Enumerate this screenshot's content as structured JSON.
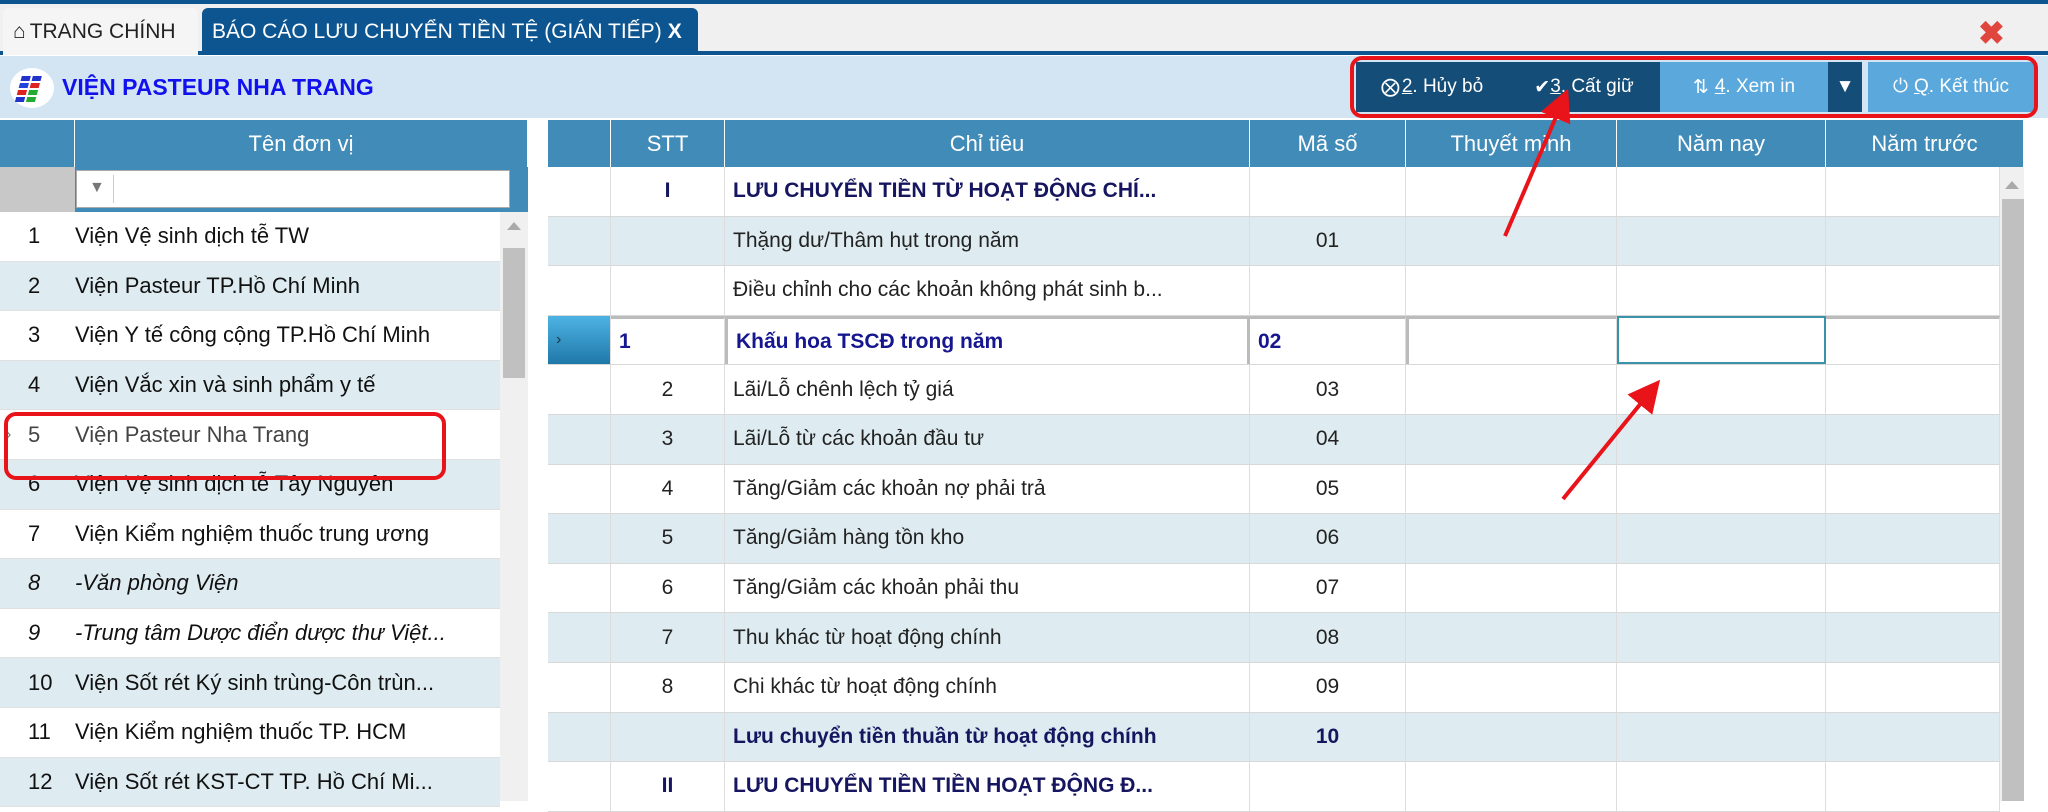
{
  "tabs": [
    {
      "label": "TRANG CHÍNH",
      "icon": "home-icon"
    },
    {
      "label": "BÁO CÁO LƯU CHUYỂN TIỀN TỆ (GIÁN TIẾP)",
      "close": "X"
    }
  ],
  "org_title": "VIỆN PASTEUR NHA TRANG",
  "toolbar": {
    "cancel": {
      "key": "2",
      "label": ". Hủy bỏ"
    },
    "save": {
      "key": "3",
      "label": ". Cất giữ"
    },
    "preview": {
      "key": "4",
      "label": ". Xem in"
    },
    "exit": {
      "key": "Q",
      "label": ". Kết thúc"
    }
  },
  "colors": {
    "header": "#418bb8",
    "dark_button": "#144d78",
    "light_button": "#5aa8dc",
    "annotation": "#e8141a",
    "alt_row": "#deecf1"
  },
  "left": {
    "header": "Tên đơn vị",
    "filter_value": "",
    "rows": [
      {
        "n": "1",
        "name": "Viện Vệ sinh dịch tễ TW"
      },
      {
        "n": "2",
        "name": "Viện Pasteur TP.Hồ Chí Minh"
      },
      {
        "n": "3",
        "name": "Viện Y tế công cộng TP.Hồ Chí Minh"
      },
      {
        "n": "4",
        "name": "Viện Vắc xin và sinh phẩm y tế"
      },
      {
        "n": "5",
        "name": "Viện Pasteur Nha Trang",
        "selected": true
      },
      {
        "n": "6",
        "name": "Viện Vệ sinh dịch tễ Tây Nguyên"
      },
      {
        "n": "7",
        "name": "Viện Kiểm nghiệm thuốc trung ương"
      },
      {
        "n": "8",
        "name": "-Văn phòng Viện",
        "italic": true
      },
      {
        "n": "9",
        "name": "-Trung tâm Dược điển dược thư Việt...",
        "italic": true
      },
      {
        "n": "10",
        "name": "Viện Sốt rét Ký sinh trùng-Côn trùn..."
      },
      {
        "n": "11",
        "name": "Viện Kiểm nghiệm thuốc TP. HCM"
      },
      {
        "n": "12",
        "name": "Viện Sốt rét KST-CT TP. Hồ Chí Mi..."
      }
    ]
  },
  "right": {
    "headers": [
      "STT",
      "Chỉ tiêu",
      "Mã số",
      "Thuyết minh",
      "Năm nay",
      "Năm trước"
    ],
    "rows": [
      {
        "stt": "I",
        "name": "LƯU CHUYỂN TIỀN TỪ HOẠT ĐỘNG CHÍ...",
        "code": "",
        "bold": true
      },
      {
        "stt": "",
        "name": "Thặng dư/Thâm hụt trong năm",
        "code": "01"
      },
      {
        "stt": "",
        "name": "Điều chỉnh cho các khoản không phát sinh b...",
        "code": ""
      },
      {
        "stt": "1",
        "name": "Khấu hoa TSCĐ trong năm",
        "code": "02",
        "selected": true
      },
      {
        "stt": "2",
        "name": "Lãi/Lỗ chênh lệch tỷ giá",
        "code": "03"
      },
      {
        "stt": "3",
        "name": "Lãi/Lỗ từ các khoản đầu tư",
        "code": "04"
      },
      {
        "stt": "4",
        "name": "Tăng/Giảm các khoản nợ phải trả",
        "code": "05"
      },
      {
        "stt": "5",
        "name": "Tăng/Giảm hàng tồn kho",
        "code": "06"
      },
      {
        "stt": "6",
        "name": "Tăng/Giảm các khoản phải thu",
        "code": "07"
      },
      {
        "stt": "7",
        "name": "Thu khác từ hoạt động chính",
        "code": "08"
      },
      {
        "stt": "8",
        "name": "Chi khác từ hoạt động chính",
        "code": "09"
      },
      {
        "stt": "",
        "name": "Lưu chuyển tiền thuần từ hoạt động chính",
        "code": "10",
        "bold": true
      },
      {
        "stt": "II",
        "name": "LƯU CHUYỂN TIỀN TIỀN HOẠT ĐỘNG Đ...",
        "code": "",
        "bold": true
      }
    ]
  }
}
